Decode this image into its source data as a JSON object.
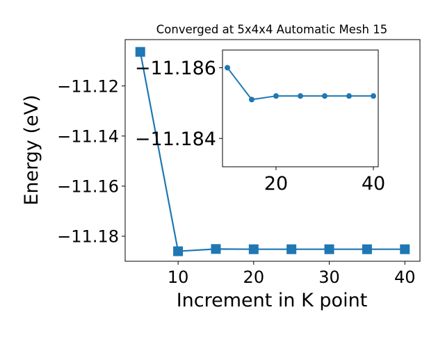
{
  "colors": {
    "series": "#1f77b4",
    "axes": "#000000",
    "background": "#ffffff"
  },
  "chart_data": [
    {
      "type": "line",
      "title": "Converged at 5x4x4 Automatic Mesh 15",
      "xlabel": "Increment in K point",
      "ylabel": "Energy (eV)",
      "xlim": [
        3,
        42
      ],
      "ylim": [
        -11.19,
        -11.1015
      ],
      "xticks": [
        10,
        20,
        30,
        40
      ],
      "yticks": [
        -11.12,
        -11.14,
        -11.16,
        -11.18
      ],
      "ytick_labels": [
        "−11.12",
        "−11.14",
        "−11.16",
        "−11.18"
      ],
      "grid": false,
      "marker": "square",
      "x": [
        5,
        10,
        15,
        20,
        25,
        30,
        35,
        40
      ],
      "y": [
        -11.1064,
        -11.186,
        -11.1851,
        -11.1852,
        -11.1852,
        -11.1852,
        -11.1852,
        -11.1852
      ]
    },
    {
      "type": "line",
      "inset": true,
      "xlim": [
        9,
        41
      ],
      "ylim": [
        -11.1832,
        -11.1865
      ],
      "xticks": [
        20,
        40
      ],
      "yticks": [
        -11.186,
        -11.184
      ],
      "ytick_labels": [
        "−11.186",
        "−11.184"
      ],
      "grid": false,
      "marker": "circle",
      "x": [
        10,
        15,
        20,
        25,
        30,
        35,
        40
      ],
      "y": [
        -11.186,
        -11.1851,
        -11.1852,
        -11.1852,
        -11.1852,
        -11.1852,
        -11.1852
      ]
    }
  ]
}
